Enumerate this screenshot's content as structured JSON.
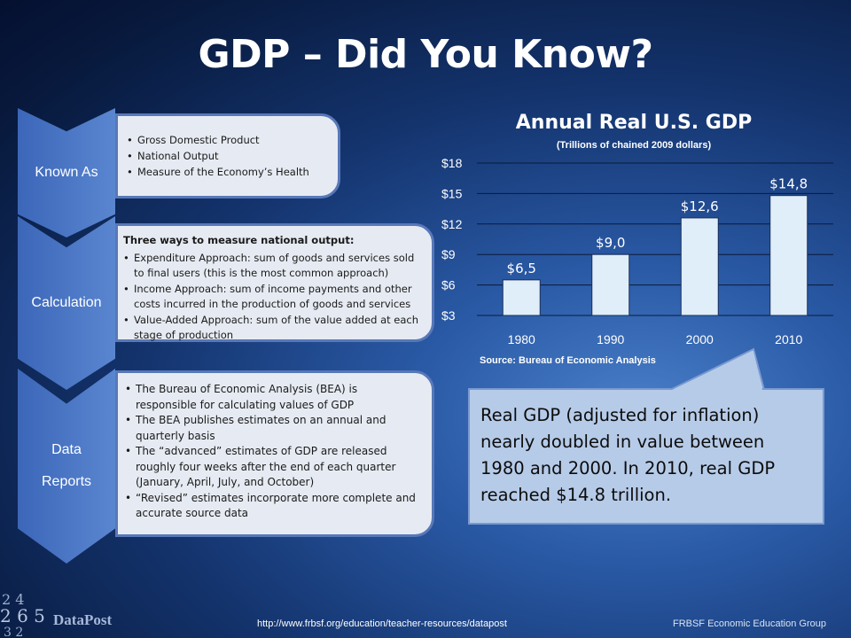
{
  "slide": {
    "title": "GDP – Did You Know?",
    "footer_url": "http://www.frbsf.org/education/teacher-resources/datapost",
    "footer_org": "FRBSF Economic Education Group",
    "logo_text": "DataPost"
  },
  "sections": [
    {
      "label": "Known As",
      "heading": "",
      "bullets": [
        "Gross Domestic Product",
        "National Output",
        "Measure of the Economy’s Health"
      ]
    },
    {
      "label": "Calculation",
      "heading": "Three ways to measure national output:",
      "bullets": [
        "Expenditure Approach: sum of goods and services sold to final users (this is the most common approach)",
        "Income Approach: sum of income payments and other costs incurred in the production of goods and services",
        "Value-Added Approach: sum of the value added at each stage of production"
      ]
    },
    {
      "label_line1": "Data",
      "label_line2": "Reports",
      "heading": "",
      "bullets": [
        "The Bureau of Economic Analysis (BEA) is responsible for calculating values of GDP",
        "The BEA publishes estimates on an annual and quarterly basis",
        "The “advanced” estimates of GDP are released roughly four weeks after the end of each quarter (January, April, July, and October)",
        "“Revised” estimates incorporate more complete and accurate source data"
      ]
    }
  ],
  "chart_data": {
    "type": "bar",
    "title": "Annual Real U.S. GDP",
    "subtitle": "(Trillions of chained 2009 dollars)",
    "categories": [
      "1980",
      "1990",
      "2000",
      "2010"
    ],
    "values": [
      6.5,
      9.0,
      12.6,
      14.8
    ],
    "data_labels": [
      "$6,5",
      "$9,0",
      "$12,6",
      "$14,8"
    ],
    "ylim": [
      3,
      18
    ],
    "yticks": [
      3,
      6,
      9,
      12,
      15,
      18
    ],
    "ytick_labels": [
      "$3",
      "$6",
      "$9",
      "$12",
      "$15",
      "$18"
    ],
    "grid": true,
    "bar_color": "#dfeef9",
    "source": "Source: Bureau of Economic Analysis"
  },
  "callout": {
    "text": "Real GDP (adjusted for inflation) nearly doubled in value between 1980 and 2000. In 2010, real GDP reached $14.8 trillion."
  },
  "colors": {
    "background": "#14346e",
    "chevron": "#4a76c4",
    "panel": "#e6ebf3",
    "callout": "#b6cbe8"
  }
}
